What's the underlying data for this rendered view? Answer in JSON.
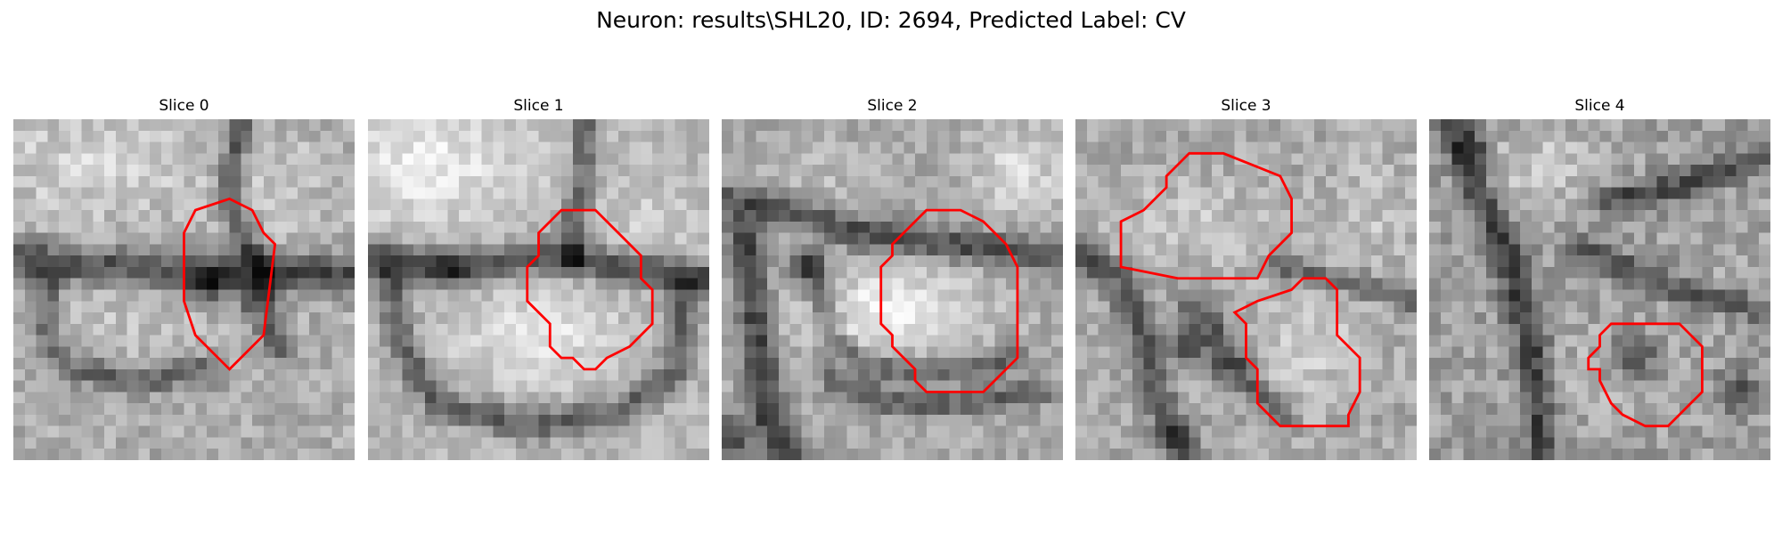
{
  "figure": {
    "title": "Neuron: results\\SHL20, ID: 2694, Predicted Label: CV"
  },
  "overlay_color": "#ff0000",
  "slices": [
    {
      "title": "Slice 0"
    },
    {
      "title": "Slice 1"
    },
    {
      "title": "Slice 2"
    },
    {
      "title": "Slice 3"
    },
    {
      "title": "Slice 4"
    }
  ]
}
